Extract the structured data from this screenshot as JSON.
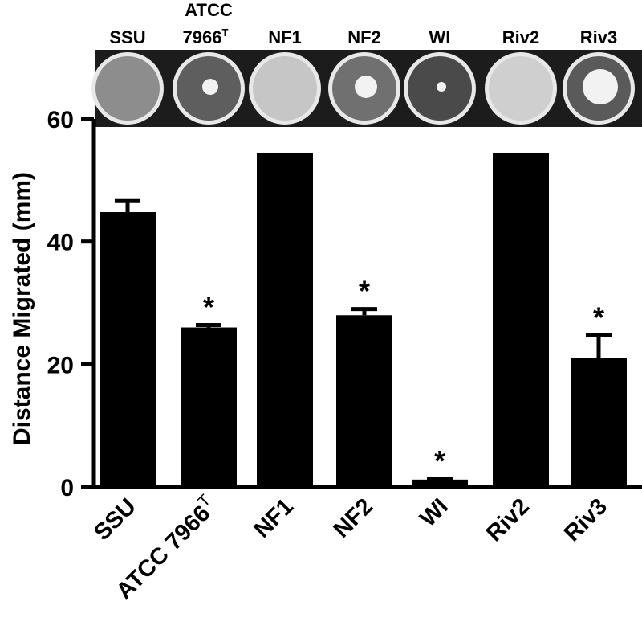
{
  "chart_data": {
    "type": "bar",
    "categories": [
      "SSU",
      "ATCC 7966",
      "NF1",
      "NF2",
      "WI",
      "Riv2",
      "Riv3"
    ],
    "category_superscripts": [
      "",
      "T",
      "",
      "",
      "",
      "",
      ""
    ],
    "values": [
      44.8,
      26.0,
      54.5,
      28.0,
      1.2,
      54.5,
      21.0
    ],
    "errors": [
      1.8,
      0.4,
      0,
      1.0,
      0.1,
      0,
      3.7
    ],
    "significant": [
      false,
      true,
      false,
      true,
      true,
      false,
      true
    ],
    "significance_marker": "*",
    "ylabel": "Distance Migrated (mm)",
    "xlabel": "",
    "ylim": [
      0,
      60
    ],
    "yticks": [
      0,
      20,
      40,
      60
    ],
    "bar_color": "#000000",
    "plate_labels": [
      "SSU",
      "ATCC\n7966T",
      "NF1",
      "NF2",
      "WI",
      "Riv2",
      "Riv3"
    ],
    "plate_strip": "photographs of swarming plates for each strain"
  }
}
